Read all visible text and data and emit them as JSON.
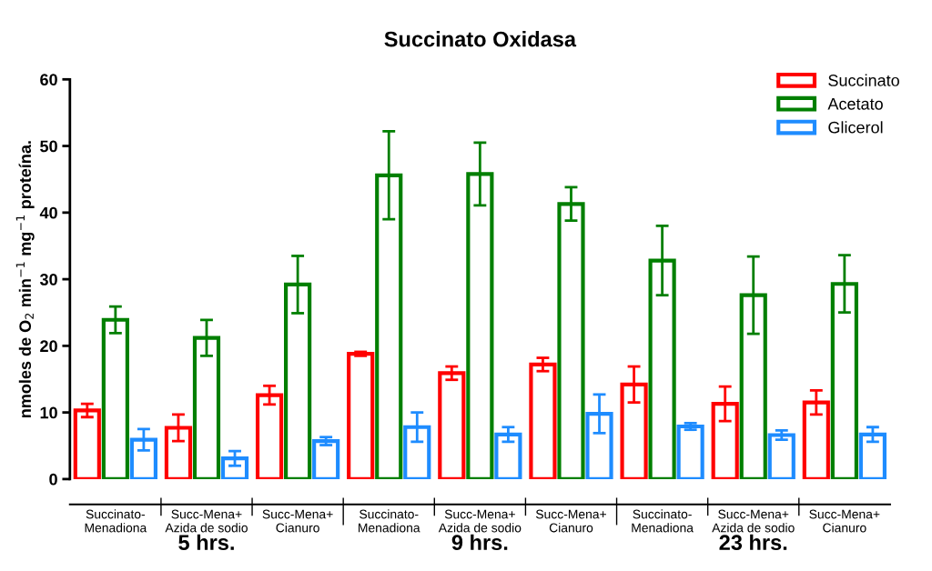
{
  "chart_data": {
    "type": "bar",
    "title": "Succinato Oxidasa",
    "ylabel": "nmoles de O$_{2}$ min$^{−1}$ mg$^{−1}$ proteína.",
    "categories": [
      "Succinato-\nMenadiona",
      "Succ-Mena+\nAzida de sodio",
      "Succ-Mena+\nCianuro",
      "Succinato-\nMenadiona",
      "Succ-Mena+\nAzida de sodio",
      "Succ-Mena+\nCianuro",
      "Succinato-\nMenadiona",
      "Succ-Mena+\nAzida de sodio",
      "Succ-Mena+\nCianuro"
    ],
    "series": [
      {
        "name": "Succinato",
        "color": "#ff0000",
        "values": [
          10.3,
          7.7,
          12.6,
          18.8,
          15.9,
          17.2,
          14.2,
          11.3,
          11.5
        ],
        "errors": [
          1.0,
          2.0,
          1.4,
          0.3,
          1.0,
          1.0,
          2.7,
          2.6,
          1.8
        ]
      },
      {
        "name": "Acetato",
        "color": "#007f00",
        "values": [
          23.9,
          21.2,
          29.2,
          45.6,
          45.8,
          41.3,
          32.8,
          27.6,
          29.3
        ],
        "errors": [
          2.0,
          2.7,
          4.3,
          6.6,
          4.7,
          2.5,
          5.2,
          5.8,
          4.3
        ]
      },
      {
        "name": "Glicerol",
        "color": "#1e8cff",
        "values": [
          5.9,
          3.1,
          5.7,
          7.8,
          6.7,
          9.8,
          7.9,
          6.6,
          6.7
        ],
        "errors": [
          1.6,
          1.1,
          0.6,
          2.2,
          1.1,
          2.9,
          0.5,
          0.7,
          1.1
        ]
      }
    ],
    "ylim": [
      0,
      60
    ],
    "yticks": [
      0,
      10,
      20,
      30,
      40,
      50,
      60
    ],
    "annotations": [
      "5 hrs.",
      "9 hrs.",
      "23 hrs."
    ],
    "legend": "top right",
    "grid": false
  }
}
